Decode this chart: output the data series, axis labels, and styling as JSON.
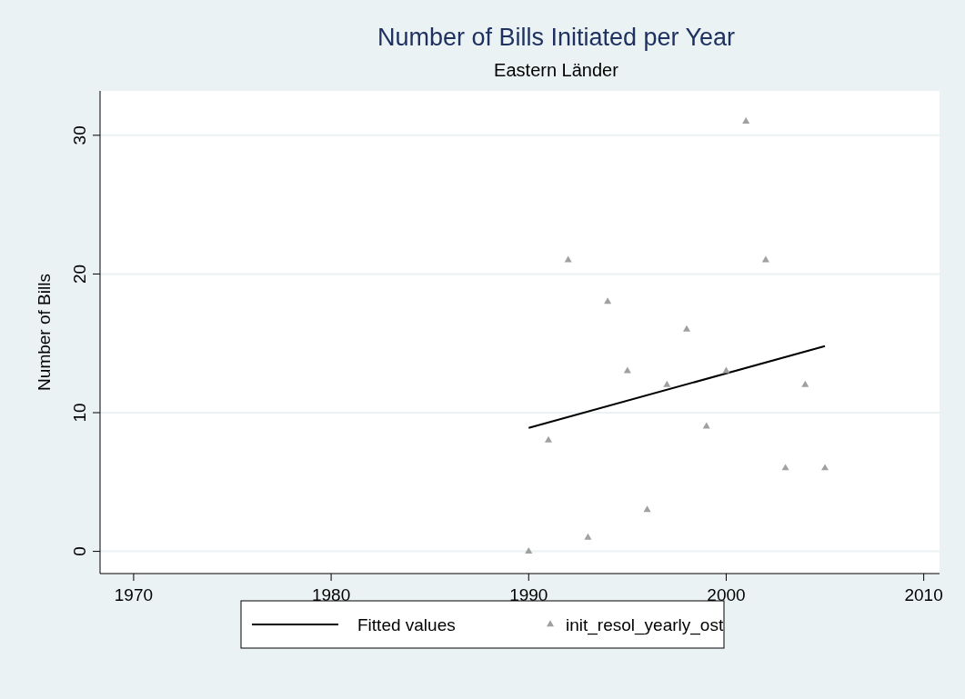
{
  "chart_data": {
    "type": "scatter",
    "title": "Number of Bills Initiated per Year",
    "subtitle": "Eastern Länder",
    "ylabel": "Number of Bills",
    "xlim": [
      1968.3,
      2010.8
    ],
    "xticks": [
      1970,
      1980,
      1990,
      2000,
      2010
    ],
    "ylim": [
      -1.6,
      33.2
    ],
    "yticks": [
      0,
      10,
      20,
      30
    ],
    "grid": "y",
    "legend": "bottom",
    "series": [
      {
        "type": "line",
        "name": "Fitted values",
        "color": "#000000",
        "line_style": "solid",
        "x": [
          1990,
          2005
        ],
        "values": [
          8.9,
          14.8
        ]
      },
      {
        "type": "scatter",
        "name": "init_resol_yearly_ost",
        "color": "#a0a0a0",
        "marker": "triangle",
        "x": [
          1990,
          1991,
          1992,
          1993,
          1994,
          1995,
          1996,
          1997,
          1998,
          1999,
          2000,
          2001,
          2002,
          2003,
          2004,
          2005
        ],
        "values": [
          0,
          8,
          21,
          1,
          18,
          13,
          3,
          12,
          16,
          9,
          13,
          31,
          21,
          6,
          12,
          6
        ]
      }
    ]
  }
}
